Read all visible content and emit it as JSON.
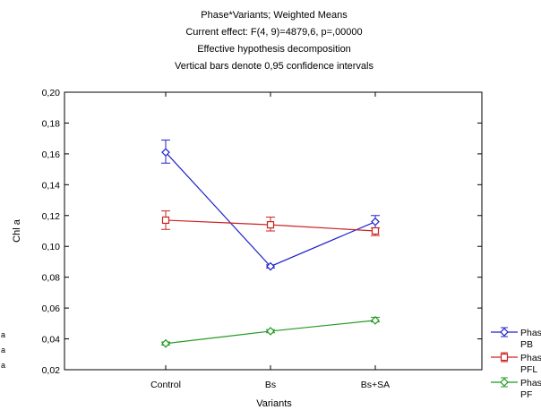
{
  "chart_data": {
    "type": "line",
    "title_lines": [
      "Phase*Variants; Weighted Means",
      "Current effect: F(4, 9)=4879,6, p=,00000",
      "Effective hypothesis decomposition",
      "Vertical bars denote 0,95 confidence intervals"
    ],
    "xlabel": "Variants",
    "ylabel": "Chl a",
    "categories": [
      "Control",
      "Bs",
      "Bs+SA"
    ],
    "ylim": [
      0.02,
      0.2
    ],
    "y_ticks": [
      0.02,
      0.04,
      0.06,
      0.08,
      0.1,
      0.12,
      0.14,
      0.16,
      0.18,
      0.2
    ],
    "y_tick_labels": [
      "0,02",
      "0,04",
      "0,06",
      "0,08",
      "0,10",
      "0,12",
      "0,14",
      "0,16",
      "0,18",
      "0,20"
    ],
    "grid": false,
    "legend_position": "right",
    "series": [
      {
        "legend_label": [
          "Phas",
          "PB"
        ],
        "marker": "diamond",
        "color": "#2222cc",
        "values": [
          0.161,
          0.087,
          0.116
        ],
        "ci_low": [
          0.154,
          0.086,
          0.112
        ],
        "ci_high": [
          0.169,
          0.088,
          0.12
        ]
      },
      {
        "legend_label": [
          "Phas",
          "PFL"
        ],
        "marker": "square",
        "color": "#cc2222",
        "values": [
          0.117,
          0.114,
          0.11
        ],
        "ci_low": [
          0.111,
          0.11,
          0.107
        ],
        "ci_high": [
          0.123,
          0.119,
          0.112
        ]
      },
      {
        "legend_label": [
          "Phas",
          "PF"
        ],
        "marker": "diamond",
        "color": "#229922",
        "values": [
          0.037,
          0.045,
          0.052
        ],
        "ci_low": [
          0.036,
          0.044,
          0.051
        ],
        "ci_high": [
          0.038,
          0.046,
          0.054
        ]
      }
    ]
  },
  "left_edge_marks": [
    "a",
    "a",
    "a"
  ]
}
